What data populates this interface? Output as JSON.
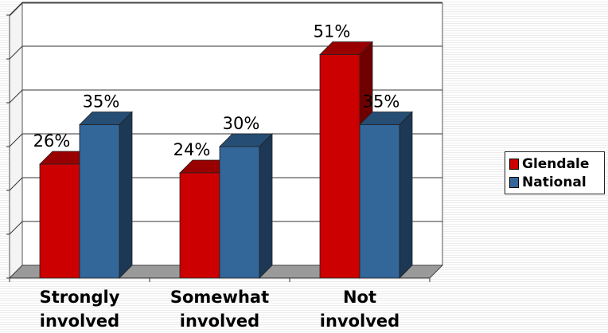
{
  "chart_data": {
    "type": "bar",
    "categories": [
      "Strongly involved",
      "Somewhat involved",
      "Not involved"
    ],
    "category_lines": [
      [
        "Strongly",
        "involved"
      ],
      [
        "Somewhat",
        "involved"
      ],
      [
        "Not",
        "involved"
      ]
    ],
    "series": [
      {
        "name": "Glendale",
        "values": [
          26,
          24,
          51
        ],
        "labels": [
          "26%",
          "24%",
          "51%"
        ],
        "color": "#cc0000"
      },
      {
        "name": "National",
        "values": [
          35,
          30,
          35
        ],
        "labels": [
          "35%",
          "30%",
          "35%"
        ],
        "color": "#336699"
      }
    ],
    "ylim": [
      0,
      60
    ],
    "grid": true,
    "legend_position": "right",
    "style": "3d-clustered-column"
  }
}
